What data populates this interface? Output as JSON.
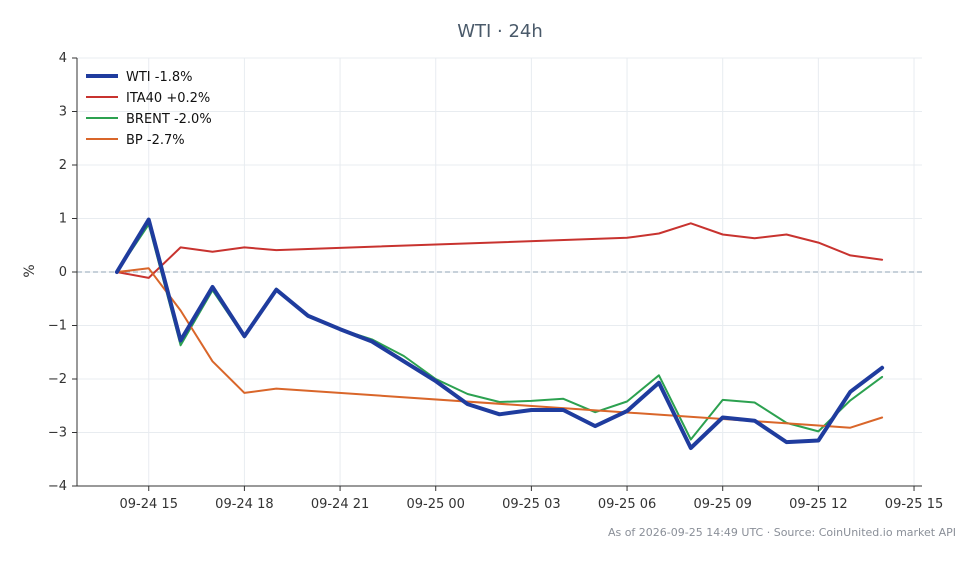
{
  "chart_data": {
    "type": "line",
    "title": "WTI · 24h",
    "xlabel": "",
    "ylabel": "%",
    "ylim": [
      -4,
      4
    ],
    "yticks": [
      -4,
      -3,
      -2,
      -1,
      0,
      1,
      2,
      3,
      4
    ],
    "xlim": [
      "2026-09-24 12:45",
      "2026-09-25 15:15"
    ],
    "xticks": [
      "2026-09-24 15:00",
      "2026-09-24 18:00",
      "2026-09-24 21:00",
      "2026-09-25 00:00",
      "2026-09-25 03:00",
      "2026-09-25 06:00",
      "2026-09-25 09:00",
      "2026-09-25 12:00",
      "2026-09-25 15:00"
    ],
    "xtick_labels": [
      "09-24 15",
      "09-24 18",
      "09-24 21",
      "09-25 00",
      "09-25 03",
      "09-25 06",
      "09-25 09",
      "09-25 12",
      "09-25 15"
    ],
    "grid": true,
    "zero_line": true,
    "legend_position": "top-left",
    "series": [
      {
        "name": "WTI -1.8%",
        "color": "#1f3c9e",
        "bold": true,
        "points": [
          [
            "2026-09-24 14:00",
            0.0
          ],
          [
            "2026-09-24 15:00",
            0.98
          ],
          [
            "2026-09-24 16:00",
            -1.28
          ],
          [
            "2026-09-24 17:00",
            -0.28
          ],
          [
            "2026-09-24 18:00",
            -1.2
          ],
          [
            "2026-09-24 19:00",
            -0.33
          ],
          [
            "2026-09-24 20:00",
            -0.82
          ],
          [
            "2026-09-24 21:00",
            -1.07
          ],
          [
            "2026-09-24 22:00",
            -1.3
          ],
          [
            "2026-09-24 23:00",
            -1.67
          ],
          [
            "2026-09-25 00:00",
            -2.04
          ],
          [
            "2026-09-25 01:00",
            -2.47
          ],
          [
            "2026-09-25 02:00",
            -2.66
          ],
          [
            "2026-09-25 03:00",
            -2.58
          ],
          [
            "2026-09-25 04:00",
            -2.58
          ],
          [
            "2026-09-25 05:00",
            -2.88
          ],
          [
            "2026-09-25 06:00",
            -2.6
          ],
          [
            "2026-09-25 07:00",
            -2.07
          ],
          [
            "2026-09-25 08:00",
            -3.29
          ],
          [
            "2026-09-25 09:00",
            -2.72
          ],
          [
            "2026-09-25 10:00",
            -2.78
          ],
          [
            "2026-09-25 11:00",
            -3.18
          ],
          [
            "2026-09-25 12:00",
            -3.15
          ],
          [
            "2026-09-25 13:00",
            -2.24
          ],
          [
            "2026-09-25 14:00",
            -1.79
          ]
        ]
      },
      {
        "name": "ITA40 +0.2%",
        "color": "#c8332f",
        "bold": false,
        "points": [
          [
            "2026-09-24 14:00",
            0.0
          ],
          [
            "2026-09-24 15:00",
            -0.11
          ],
          [
            "2026-09-24 16:00",
            0.46
          ],
          [
            "2026-09-24 17:00",
            0.38
          ],
          [
            "2026-09-24 18:00",
            0.46
          ],
          [
            "2026-09-24 19:00",
            0.41
          ],
          [
            "2026-09-25 06:00",
            0.64
          ],
          [
            "2026-09-25 07:00",
            0.72
          ],
          [
            "2026-09-25 08:00",
            0.91
          ],
          [
            "2026-09-25 09:00",
            0.7
          ],
          [
            "2026-09-25 10:00",
            0.63
          ],
          [
            "2026-09-25 11:00",
            0.7
          ],
          [
            "2026-09-25 12:00",
            0.55
          ],
          [
            "2026-09-25 13:00",
            0.31
          ],
          [
            "2026-09-25 14:00",
            0.23
          ]
        ]
      },
      {
        "name": "BRENT -2.0%",
        "color": "#2ca150",
        "bold": false,
        "points": [
          [
            "2026-09-24 14:00",
            0.0
          ],
          [
            "2026-09-24 15:00",
            0.89
          ],
          [
            "2026-09-24 16:00",
            -1.37
          ],
          [
            "2026-09-24 17:00",
            -0.34
          ],
          [
            "2026-09-24 18:00",
            -1.22
          ],
          [
            "2026-09-24 19:00",
            -0.31
          ],
          [
            "2026-09-24 20:00",
            -0.81
          ],
          [
            "2026-09-24 21:00",
            -1.07
          ],
          [
            "2026-09-24 22:00",
            -1.26
          ],
          [
            "2026-09-24 23:00",
            -1.57
          ],
          [
            "2026-09-25 00:00",
            -2.0
          ],
          [
            "2026-09-25 01:00",
            -2.28
          ],
          [
            "2026-09-25 02:00",
            -2.43
          ],
          [
            "2026-09-25 03:00",
            -2.41
          ],
          [
            "2026-09-25 04:00",
            -2.37
          ],
          [
            "2026-09-25 05:00",
            -2.62
          ],
          [
            "2026-09-25 06:00",
            -2.42
          ],
          [
            "2026-09-25 07:00",
            -1.93
          ],
          [
            "2026-09-25 08:00",
            -3.13
          ],
          [
            "2026-09-25 09:00",
            -2.39
          ],
          [
            "2026-09-25 10:00",
            -2.44
          ],
          [
            "2026-09-25 11:00",
            -2.82
          ],
          [
            "2026-09-25 12:00",
            -2.98
          ],
          [
            "2026-09-25 13:00",
            -2.4
          ],
          [
            "2026-09-25 14:00",
            -1.96
          ]
        ]
      },
      {
        "name": "BP -2.7%",
        "color": "#d9662a",
        "bold": false,
        "points": [
          [
            "2026-09-24 14:00",
            0.0
          ],
          [
            "2026-09-24 15:00",
            0.07
          ],
          [
            "2026-09-24 16:00",
            -0.72
          ],
          [
            "2026-09-24 17:00",
            -1.67
          ],
          [
            "2026-09-24 18:00",
            -2.26
          ],
          [
            "2026-09-24 19:00",
            -2.18
          ],
          [
            "2026-09-25 12:00",
            -2.87
          ],
          [
            "2026-09-25 13:00",
            -2.91
          ],
          [
            "2026-09-25 14:00",
            -2.72
          ]
        ]
      }
    ]
  },
  "footnote": "As of 2026-09-25 14:49 UTC · Source: CoinUnited.io market API"
}
